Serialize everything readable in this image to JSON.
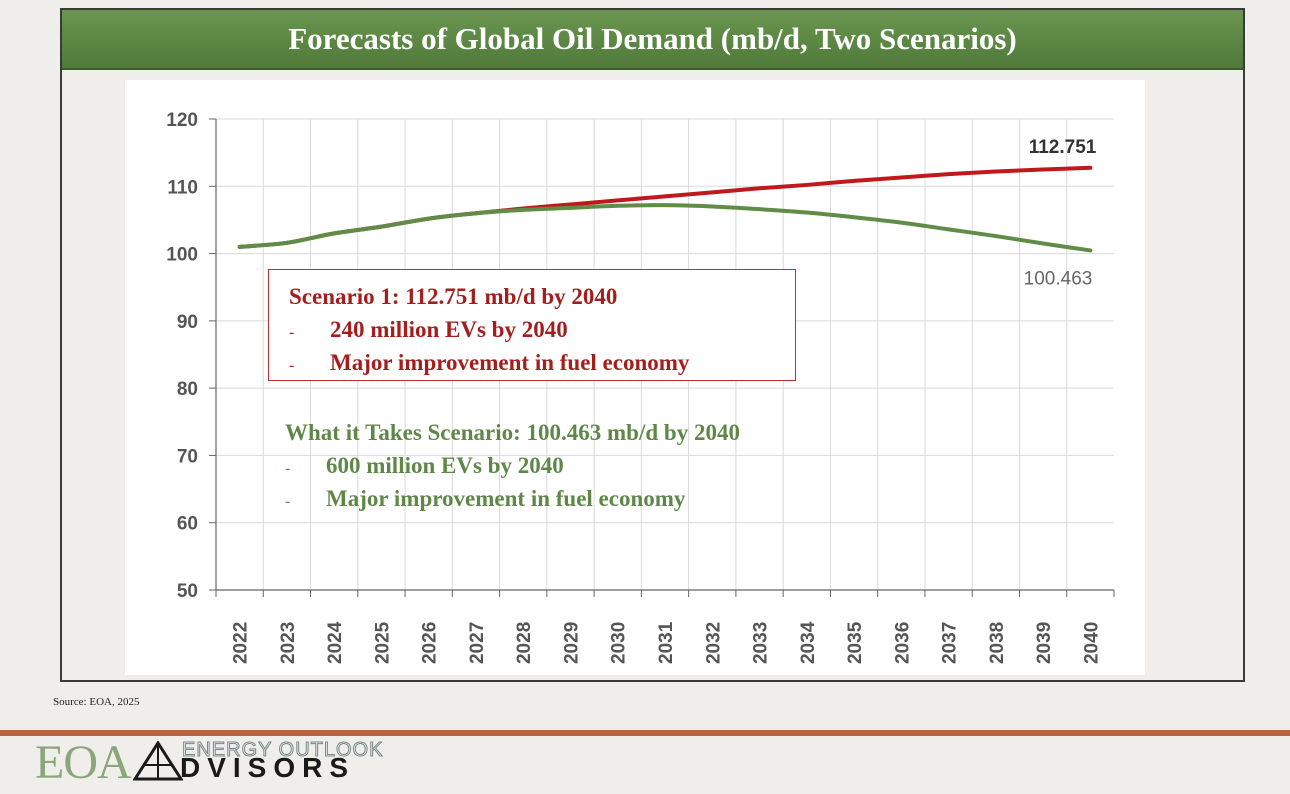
{
  "title": "Forecasts of Global Oil Demand  (mb/d, Two Scenarios)",
  "chart_data": {
    "type": "line",
    "title": "Forecasts of Global Oil Demand  (mb/d, Two Scenarios)",
    "xlabel": "",
    "ylabel": "",
    "ylim": [
      50,
      120
    ],
    "yticks": [
      50,
      60,
      70,
      80,
      90,
      100,
      110,
      120
    ],
    "grid": true,
    "x": [
      "2022",
      "2023",
      "2024",
      "2025",
      "2026",
      "2027",
      "2028",
      "2029",
      "2030",
      "2031",
      "2032",
      "2033",
      "2034",
      "2035",
      "2036",
      "2037",
      "2038",
      "2039",
      "2040"
    ],
    "series": [
      {
        "name": "Scenario 1",
        "color": "#c0191c",
        "values": [
          101.0,
          101.6,
          103.0,
          104.0,
          105.2,
          106.0,
          106.7,
          107.3,
          107.9,
          108.5,
          109.1,
          109.7,
          110.2,
          110.8,
          111.3,
          111.8,
          112.2,
          112.5,
          112.751
        ]
      },
      {
        "name": "What it Takes Scenario",
        "color": "#5f8c46",
        "values": [
          101.0,
          101.6,
          103.0,
          104.0,
          105.2,
          106.0,
          106.5,
          106.8,
          107.1,
          107.2,
          107.0,
          106.6,
          106.1,
          105.4,
          104.6,
          103.6,
          102.6,
          101.5,
          100.463
        ]
      }
    ],
    "end_labels": {
      "scenario1": "112.751",
      "scenario2": "100.463"
    },
    "annotations": {
      "scenario1_heading": "Scenario 1: 112.751 mb/d by 2040",
      "scenario1_bullets": [
        "240 million EVs by 2040",
        "Major improvement in fuel economy"
      ],
      "scenario2_heading": "What it Takes  Scenario: 100.463 mb/d by 2040",
      "scenario2_bullets": [
        "600 million EVs by 2040",
        "Major improvement in fuel economy"
      ],
      "bullet_marker": "-"
    }
  },
  "source": "Source:  EOA, 2025",
  "logo": {
    "mark": "EOA",
    "top": "ENERGY OUTLOOK",
    "bottom": "DVISORS"
  },
  "colors": {
    "title_bar": "#5a8645",
    "divider": "#b5663b",
    "scenario1": "#a51e1e",
    "scenario2": "#5f8848"
  }
}
